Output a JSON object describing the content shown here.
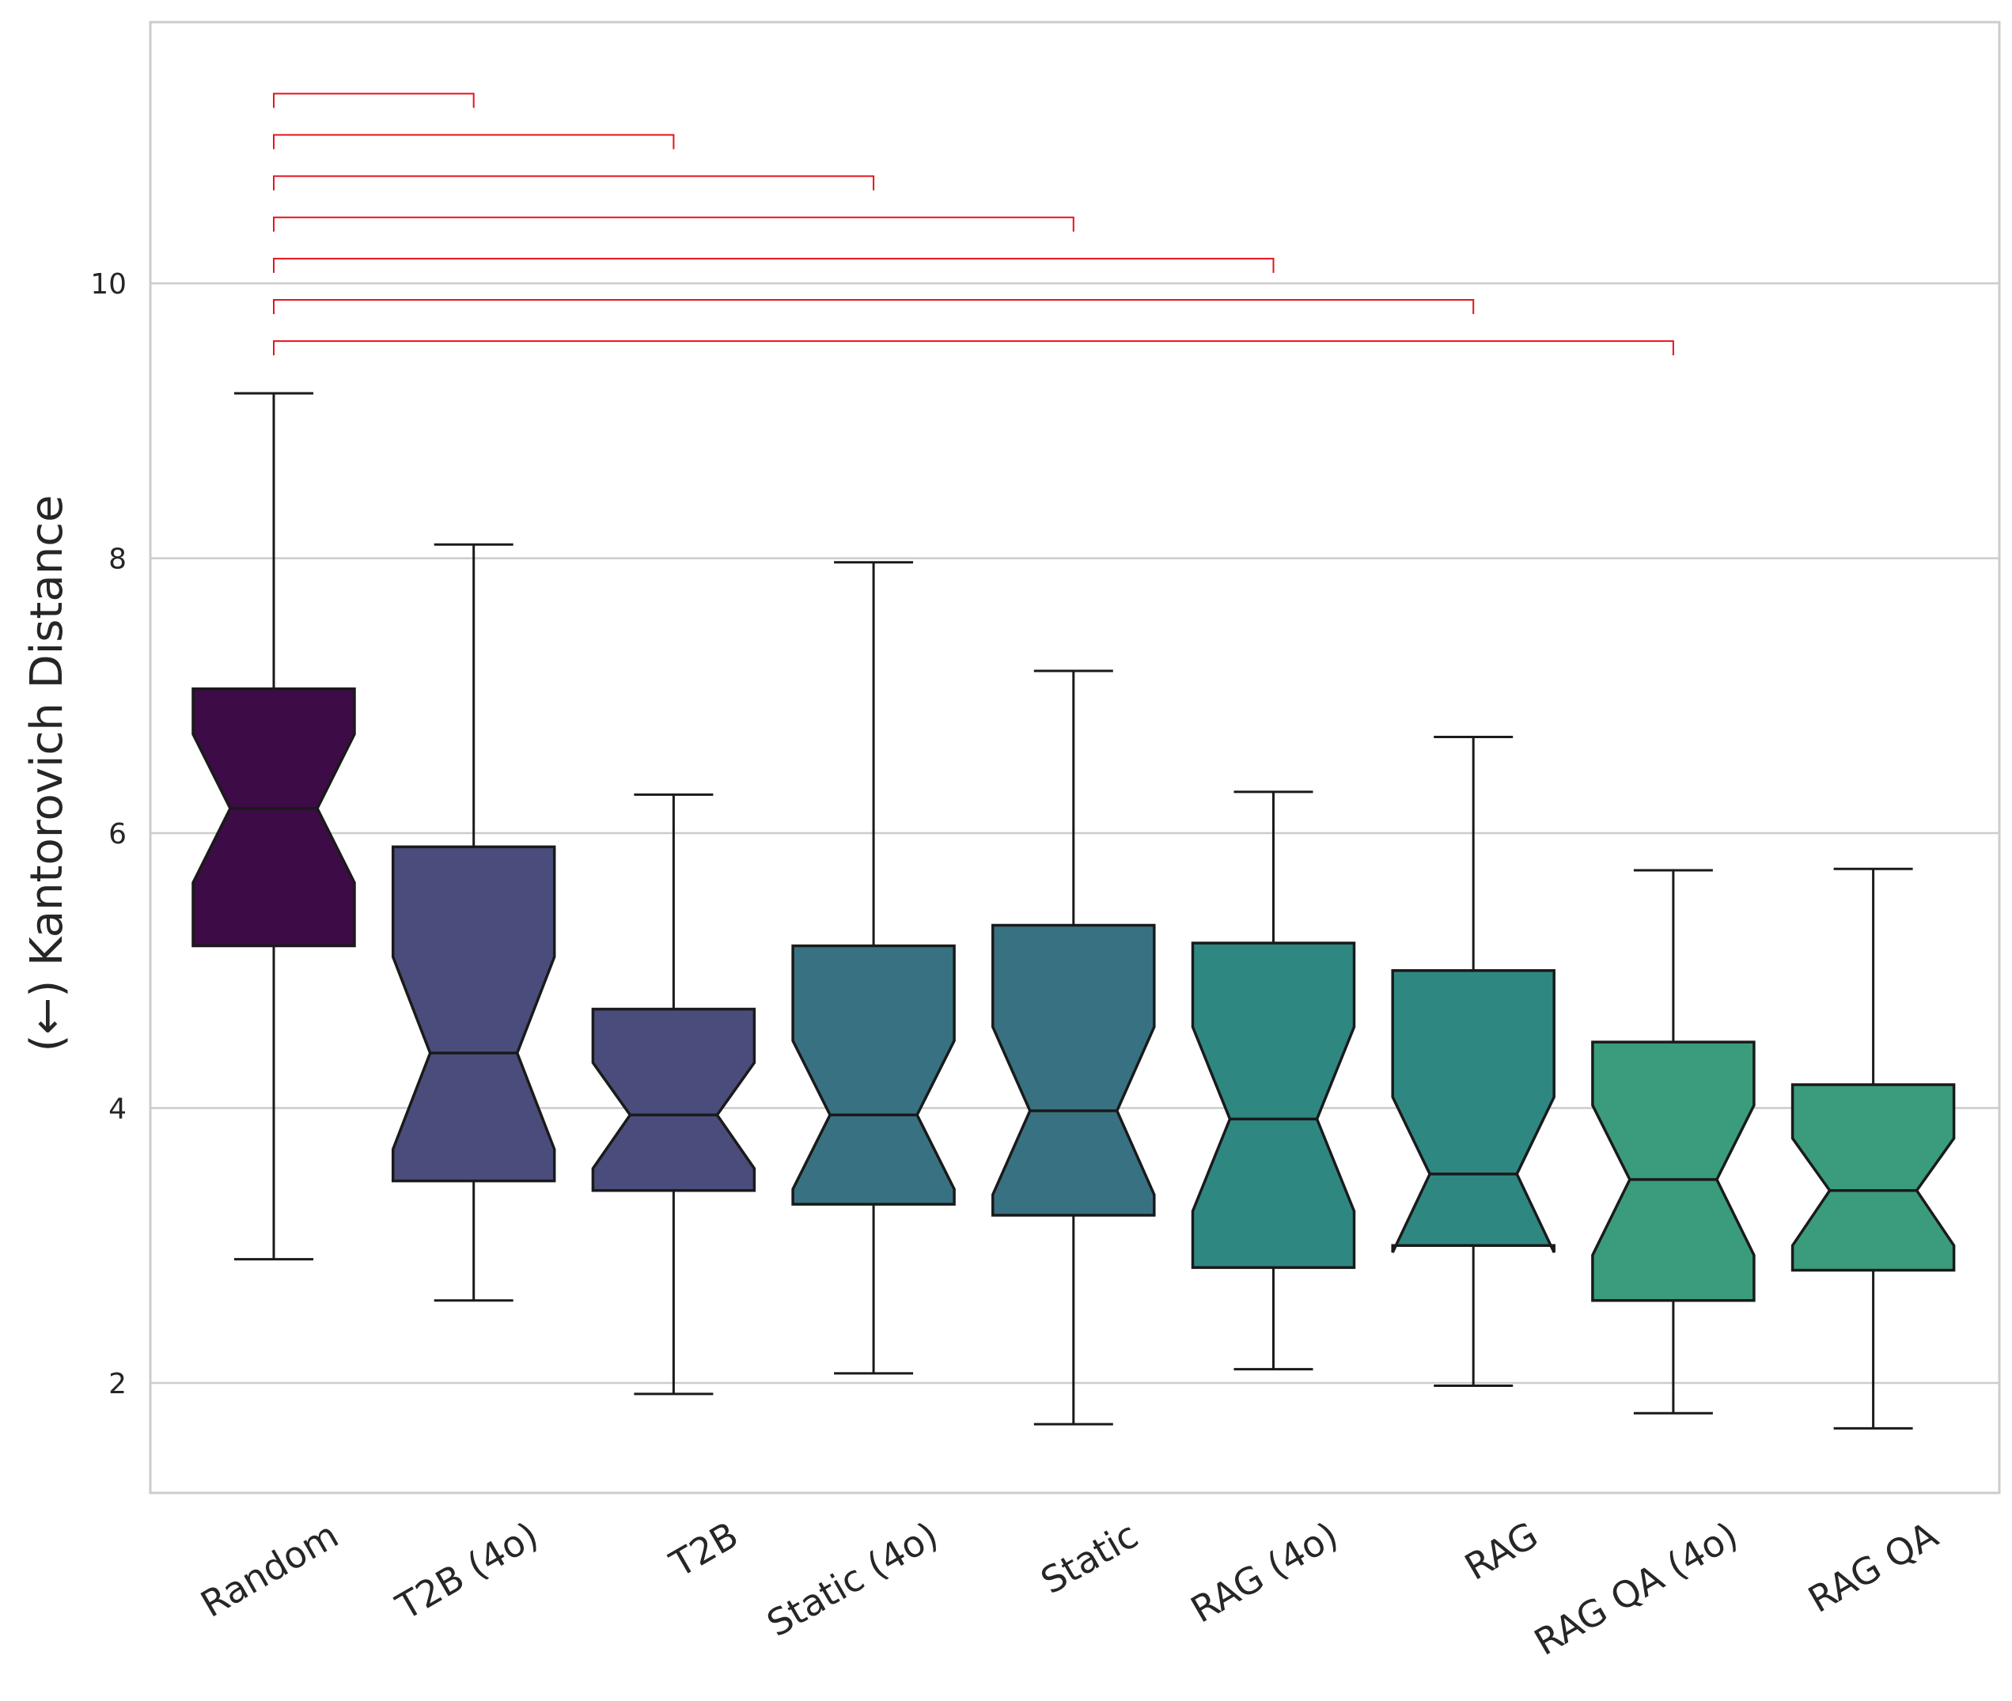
{
  "chart_data": {
    "type": "boxplot",
    "title": "",
    "xlabel": "",
    "ylabel": "(←) Kantorovich Distance",
    "ylim": [
      1.2,
      11.9
    ],
    "yticks": [
      2,
      4,
      6,
      8,
      10
    ],
    "grid": true,
    "notched": true,
    "categories": [
      "Random",
      "T2B (4o)",
      "T2B",
      "Static (4o)",
      "Static",
      "RAG (4o)",
      "RAG",
      "RAG QA (4o)",
      "RAG QA"
    ],
    "boxes": [
      {
        "name": "Random",
        "whisker_low": 2.9,
        "q1": 5.18,
        "notch_low": 5.64,
        "median": 6.18,
        "notch_high": 6.72,
        "q3": 7.05,
        "whisker_high": 9.2,
        "color": "#3d0b45"
      },
      {
        "name": "T2B (4o)",
        "whisker_low": 2.6,
        "q1": 3.47,
        "notch_low": 3.7,
        "median": 4.4,
        "notch_high": 5.1,
        "q3": 5.9,
        "whisker_high": 8.1,
        "color": "#4a4d7b"
      },
      {
        "name": "T2B",
        "whisker_low": 1.92,
        "q1": 3.4,
        "notch_low": 3.56,
        "median": 3.95,
        "notch_high": 4.33,
        "q3": 4.72,
        "whisker_high": 6.28,
        "color": "#4a4d7b"
      },
      {
        "name": "Static (4o)",
        "whisker_low": 2.07,
        "q1": 3.3,
        "notch_low": 3.41,
        "median": 3.95,
        "notch_high": 4.49,
        "q3": 5.18,
        "whisker_high": 7.97,
        "color": "#387282"
      },
      {
        "name": "Static",
        "whisker_low": 1.7,
        "q1": 3.22,
        "notch_low": 3.37,
        "median": 3.98,
        "notch_high": 4.59,
        "q3": 5.33,
        "whisker_high": 7.18,
        "color": "#387282"
      },
      {
        "name": "RAG (4o)",
        "whisker_low": 2.1,
        "q1": 2.84,
        "notch_low": 3.25,
        "median": 3.92,
        "notch_high": 4.59,
        "q3": 5.2,
        "whisker_high": 6.3,
        "color": "#2f8782"
      },
      {
        "name": "RAG",
        "whisker_low": 1.98,
        "q1": 3.0,
        "notch_low": 2.95,
        "median": 3.52,
        "notch_high": 4.08,
        "q3": 5.0,
        "whisker_high": 6.7,
        "color": "#2f8782"
      },
      {
        "name": "RAG QA (4o)",
        "whisker_low": 1.78,
        "q1": 2.6,
        "notch_low": 2.93,
        "median": 3.48,
        "notch_high": 4.02,
        "q3": 4.48,
        "whisker_high": 5.73,
        "color": "#3a9c7c"
      },
      {
        "name": "RAG QA",
        "whisker_low": 1.67,
        "q1": 2.82,
        "notch_low": 3.0,
        "median": 3.4,
        "notch_high": 3.78,
        "q3": 4.17,
        "whisker_high": 5.74,
        "color": "#3a9c7c"
      }
    ],
    "significance_brackets": [
      {
        "from": "Random",
        "to": "T2B (4o)",
        "y": 11.38
      },
      {
        "from": "Random",
        "to": "T2B",
        "y": 11.08
      },
      {
        "from": "Random",
        "to": "Static (4o)",
        "y": 10.78
      },
      {
        "from": "Random",
        "to": "Static",
        "y": 10.48
      },
      {
        "from": "Random",
        "to": "RAG (4o)",
        "y": 10.18
      },
      {
        "from": "Random",
        "to": "RAG",
        "y": 9.88
      },
      {
        "from": "Random",
        "to": "RAG QA (4o)",
        "y": 9.58
      }
    ],
    "bracket_color": "#e8121c",
    "grid_color": "#cccccc",
    "frame_color": "#cccccc",
    "line_color": "#1a1a1a"
  }
}
